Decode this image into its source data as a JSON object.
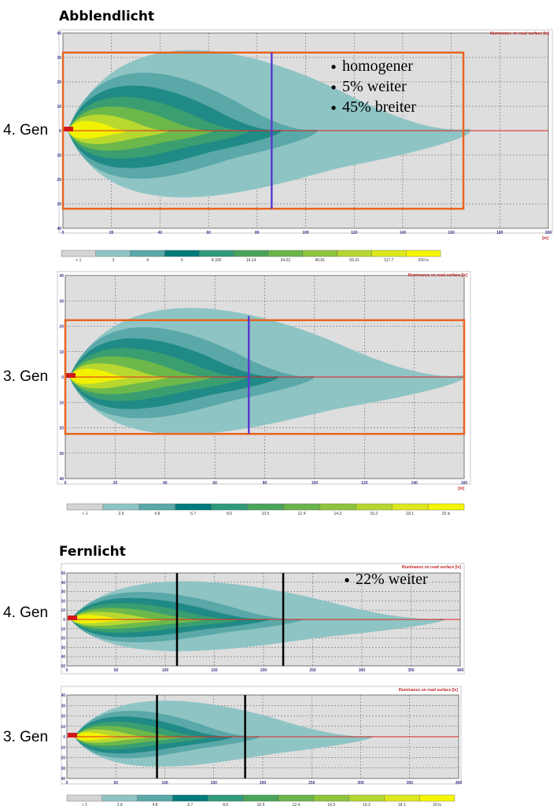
{
  "sections": [
    {
      "title": "Abblendlicht",
      "plots": [
        {
          "label": "4. Gen",
          "header": "Illuminance on road surface [lx]",
          "x_unit": "[m]",
          "x_ticks": [
            "0",
            "20",
            "40",
            "60",
            "80",
            "100",
            "120",
            "140",
            "160",
            "180",
            "200"
          ],
          "y_ticks": [
            "40",
            "30",
            "20",
            "10",
            "0",
            "10",
            "20",
            "30",
            "40"
          ],
          "legend": [
            "< 1",
            "3",
            "4",
            "5",
            "8.326",
            "14.14",
            "24.02",
            "40.81",
            "69.31",
            "117.7",
            "200 lx"
          ],
          "notes": [
            "homogener",
            "5% weiter",
            "45% breiter"
          ]
        },
        {
          "label": "3. Gen",
          "header": "Illuminance on road surface [lx]",
          "x_unit": "[m]",
          "x_ticks": [
            "0",
            "20",
            "40",
            "60",
            "80",
            "100",
            "120",
            "140",
            "160"
          ],
          "y_ticks": [
            "40",
            "30",
            "20",
            "10",
            "0",
            "10",
            "20",
            "30",
            "40"
          ],
          "legend": [
            "< 1",
            "2.9",
            "4.8",
            "6.7",
            "8.6",
            "10.5",
            "12.4",
            "14.3",
            "16.2",
            "18.1",
            "20 lx"
          ]
        }
      ]
    },
    {
      "title": "Fernlicht",
      "plots": [
        {
          "label": "4. Gen",
          "header": "Illuminance on road surface [lx]",
          "x_ticks": [
            "0",
            "50",
            "100",
            "150",
            "200",
            "250",
            "300",
            "350",
            "400"
          ],
          "y_ticks": [
            "50",
            "40",
            "30",
            "20",
            "10",
            "0",
            "10",
            "20",
            "30",
            "40",
            "50"
          ],
          "notes": [
            "22% weiter"
          ]
        },
        {
          "label": "3. Gen",
          "header": "Illuminance on road surface [lx]",
          "x_ticks": [
            "0",
            "50",
            "100",
            "150",
            "200",
            "250",
            "300",
            "350",
            "400"
          ],
          "y_ticks": [
            "40",
            "30",
            "20",
            "10",
            "0",
            "10",
            "20",
            "30",
            "40"
          ],
          "legend": [
            "< 1",
            "2.9",
            "4.8",
            "6.7",
            "8.6",
            "10.5",
            "12.4",
            "14.3",
            "16.2",
            "18.1",
            "20 lx"
          ]
        }
      ]
    }
  ]
}
